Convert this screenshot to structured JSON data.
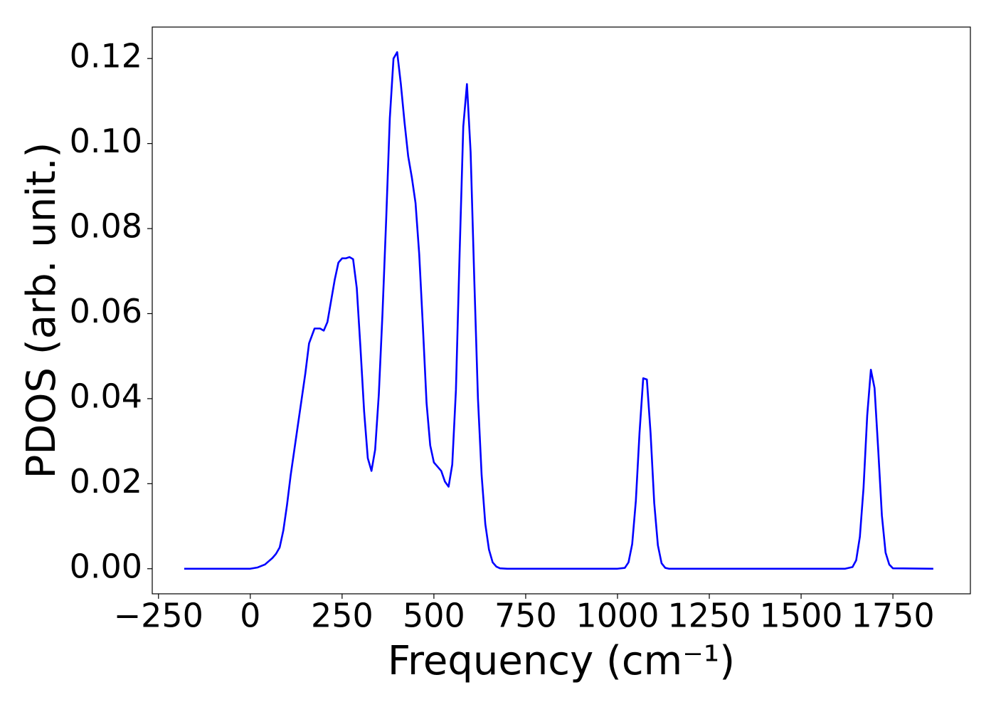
{
  "chart_data": {
    "type": "line",
    "x_label": "Frequency (cm⁻¹)",
    "y_label": "PDOS (arb. unit.)",
    "x": [
      -180,
      0,
      20,
      40,
      60,
      70,
      80,
      90,
      100,
      110,
      120,
      130,
      140,
      150,
      160,
      175,
      190,
      200,
      210,
      220,
      230,
      240,
      250,
      260,
      270,
      280,
      290,
      300,
      310,
      320,
      330,
      340,
      350,
      360,
      370,
      380,
      390,
      400,
      410,
      420,
      430,
      440,
      450,
      460,
      470,
      480,
      490,
      500,
      510,
      520,
      530,
      540,
      550,
      560,
      570,
      580,
      590,
      600,
      610,
      620,
      630,
      640,
      650,
      660,
      670,
      680,
      700,
      1000,
      1020,
      1030,
      1040,
      1050,
      1060,
      1070,
      1080,
      1090,
      1100,
      1110,
      1120,
      1130,
      1140,
      1620,
      1640,
      1650,
      1660,
      1670,
      1680,
      1690,
      1700,
      1710,
      1720,
      1730,
      1740,
      1750,
      1860
    ],
    "series": [
      {
        "name": "PDOS",
        "color": "#0000ff",
        "values": [
          0,
          0,
          0.0003,
          0.001,
          0.0025,
          0.0035,
          0.005,
          0.009,
          0.015,
          0.022,
          0.028,
          0.034,
          0.04,
          0.046,
          0.053,
          0.0565,
          0.0565,
          0.056,
          0.058,
          0.063,
          0.068,
          0.072,
          0.073,
          0.073,
          0.0733,
          0.0728,
          0.066,
          0.052,
          0.037,
          0.026,
          0.023,
          0.028,
          0.041,
          0.06,
          0.082,
          0.106,
          0.12,
          0.1215,
          0.114,
          0.105,
          0.097,
          0.092,
          0.086,
          0.074,
          0.057,
          0.039,
          0.029,
          0.025,
          0.024,
          0.023,
          0.0205,
          0.0193,
          0.0245,
          0.042,
          0.074,
          0.104,
          0.114,
          0.098,
          0.068,
          0.04,
          0.022,
          0.0105,
          0.0045,
          0.0015,
          0.0005,
          0.0001,
          0,
          0,
          0.0002,
          0.0015,
          0.0058,
          0.016,
          0.032,
          0.0448,
          0.0445,
          0.032,
          0.0155,
          0.0055,
          0.0013,
          0.0002,
          0,
          0,
          0.0004,
          0.002,
          0.0075,
          0.019,
          0.036,
          0.0468,
          0.0425,
          0.028,
          0.0125,
          0.0038,
          0.001,
          0.0001,
          0
        ]
      }
    ],
    "xlim": [
      -267,
      1961
    ],
    "ylim": [
      -0.0059,
      0.1274
    ],
    "xticks": [
      {
        "value": -250,
        "label": "−250"
      },
      0,
      250,
      500,
      750,
      1000,
      1250,
      1500,
      1750
    ],
    "yticks": [
      {
        "value": 0,
        "label": "0.00"
      },
      {
        "value": 0.02,
        "label": "0.02"
      },
      {
        "value": 0.04,
        "label": "0.04"
      },
      {
        "value": 0.06,
        "label": "0.06"
      },
      {
        "value": 0.08,
        "label": "0.08"
      },
      {
        "value": 0.1,
        "label": "0.10"
      },
      {
        "value": 0.12,
        "label": "0.12"
      }
    ],
    "grid": false
  }
}
